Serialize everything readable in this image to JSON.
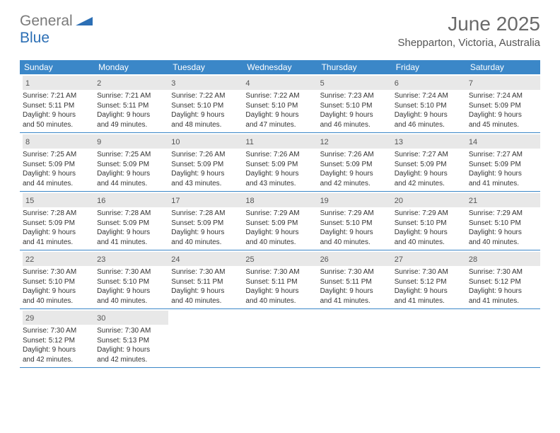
{
  "logo": {
    "gray": "General",
    "blue": "Blue"
  },
  "title": "June 2025",
  "location": "Shepparton, Victoria, Australia",
  "colors": {
    "header_bg": "#3b87c8",
    "daynum_bg": "#e8e8e8",
    "border": "#3b87c8",
    "logo_gray": "#7a7a7a",
    "logo_blue": "#2c6fb5"
  },
  "weekdays": [
    "Sunday",
    "Monday",
    "Tuesday",
    "Wednesday",
    "Thursday",
    "Friday",
    "Saturday"
  ],
  "weeks": [
    [
      {
        "n": "1",
        "sunrise": "7:21 AM",
        "sunset": "5:11 PM",
        "dl1": "Daylight: 9 hours",
        "dl2": "and 50 minutes."
      },
      {
        "n": "2",
        "sunrise": "7:21 AM",
        "sunset": "5:11 PM",
        "dl1": "Daylight: 9 hours",
        "dl2": "and 49 minutes."
      },
      {
        "n": "3",
        "sunrise": "7:22 AM",
        "sunset": "5:10 PM",
        "dl1": "Daylight: 9 hours",
        "dl2": "and 48 minutes."
      },
      {
        "n": "4",
        "sunrise": "7:22 AM",
        "sunset": "5:10 PM",
        "dl1": "Daylight: 9 hours",
        "dl2": "and 47 minutes."
      },
      {
        "n": "5",
        "sunrise": "7:23 AM",
        "sunset": "5:10 PM",
        "dl1": "Daylight: 9 hours",
        "dl2": "and 46 minutes."
      },
      {
        "n": "6",
        "sunrise": "7:24 AM",
        "sunset": "5:10 PM",
        "dl1": "Daylight: 9 hours",
        "dl2": "and 46 minutes."
      },
      {
        "n": "7",
        "sunrise": "7:24 AM",
        "sunset": "5:09 PM",
        "dl1": "Daylight: 9 hours",
        "dl2": "and 45 minutes."
      }
    ],
    [
      {
        "n": "8",
        "sunrise": "7:25 AM",
        "sunset": "5:09 PM",
        "dl1": "Daylight: 9 hours",
        "dl2": "and 44 minutes."
      },
      {
        "n": "9",
        "sunrise": "7:25 AM",
        "sunset": "5:09 PM",
        "dl1": "Daylight: 9 hours",
        "dl2": "and 44 minutes."
      },
      {
        "n": "10",
        "sunrise": "7:26 AM",
        "sunset": "5:09 PM",
        "dl1": "Daylight: 9 hours",
        "dl2": "and 43 minutes."
      },
      {
        "n": "11",
        "sunrise": "7:26 AM",
        "sunset": "5:09 PM",
        "dl1": "Daylight: 9 hours",
        "dl2": "and 43 minutes."
      },
      {
        "n": "12",
        "sunrise": "7:26 AM",
        "sunset": "5:09 PM",
        "dl1": "Daylight: 9 hours",
        "dl2": "and 42 minutes."
      },
      {
        "n": "13",
        "sunrise": "7:27 AM",
        "sunset": "5:09 PM",
        "dl1": "Daylight: 9 hours",
        "dl2": "and 42 minutes."
      },
      {
        "n": "14",
        "sunrise": "7:27 AM",
        "sunset": "5:09 PM",
        "dl1": "Daylight: 9 hours",
        "dl2": "and 41 minutes."
      }
    ],
    [
      {
        "n": "15",
        "sunrise": "7:28 AM",
        "sunset": "5:09 PM",
        "dl1": "Daylight: 9 hours",
        "dl2": "and 41 minutes."
      },
      {
        "n": "16",
        "sunrise": "7:28 AM",
        "sunset": "5:09 PM",
        "dl1": "Daylight: 9 hours",
        "dl2": "and 41 minutes."
      },
      {
        "n": "17",
        "sunrise": "7:28 AM",
        "sunset": "5:09 PM",
        "dl1": "Daylight: 9 hours",
        "dl2": "and 40 minutes."
      },
      {
        "n": "18",
        "sunrise": "7:29 AM",
        "sunset": "5:09 PM",
        "dl1": "Daylight: 9 hours",
        "dl2": "and 40 minutes."
      },
      {
        "n": "19",
        "sunrise": "7:29 AM",
        "sunset": "5:10 PM",
        "dl1": "Daylight: 9 hours",
        "dl2": "and 40 minutes."
      },
      {
        "n": "20",
        "sunrise": "7:29 AM",
        "sunset": "5:10 PM",
        "dl1": "Daylight: 9 hours",
        "dl2": "and 40 minutes."
      },
      {
        "n": "21",
        "sunrise": "7:29 AM",
        "sunset": "5:10 PM",
        "dl1": "Daylight: 9 hours",
        "dl2": "and 40 minutes."
      }
    ],
    [
      {
        "n": "22",
        "sunrise": "7:30 AM",
        "sunset": "5:10 PM",
        "dl1": "Daylight: 9 hours",
        "dl2": "and 40 minutes."
      },
      {
        "n": "23",
        "sunrise": "7:30 AM",
        "sunset": "5:10 PM",
        "dl1": "Daylight: 9 hours",
        "dl2": "and 40 minutes."
      },
      {
        "n": "24",
        "sunrise": "7:30 AM",
        "sunset": "5:11 PM",
        "dl1": "Daylight: 9 hours",
        "dl2": "and 40 minutes."
      },
      {
        "n": "25",
        "sunrise": "7:30 AM",
        "sunset": "5:11 PM",
        "dl1": "Daylight: 9 hours",
        "dl2": "and 40 minutes."
      },
      {
        "n": "26",
        "sunrise": "7:30 AM",
        "sunset": "5:11 PM",
        "dl1": "Daylight: 9 hours",
        "dl2": "and 41 minutes."
      },
      {
        "n": "27",
        "sunrise": "7:30 AM",
        "sunset": "5:12 PM",
        "dl1": "Daylight: 9 hours",
        "dl2": "and 41 minutes."
      },
      {
        "n": "28",
        "sunrise": "7:30 AM",
        "sunset": "5:12 PM",
        "dl1": "Daylight: 9 hours",
        "dl2": "and 41 minutes."
      }
    ],
    [
      {
        "n": "29",
        "sunrise": "7:30 AM",
        "sunset": "5:12 PM",
        "dl1": "Daylight: 9 hours",
        "dl2": "and 42 minutes."
      },
      {
        "n": "30",
        "sunrise": "7:30 AM",
        "sunset": "5:13 PM",
        "dl1": "Daylight: 9 hours",
        "dl2": "and 42 minutes."
      },
      null,
      null,
      null,
      null,
      null
    ]
  ],
  "labels": {
    "sunrise": "Sunrise:",
    "sunset": "Sunset:"
  }
}
